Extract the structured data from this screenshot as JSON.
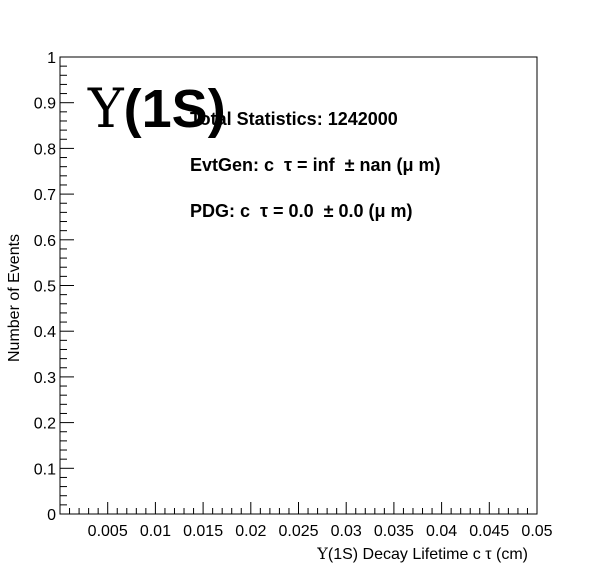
{
  "chart_data": {
    "type": "histogram",
    "title": "",
    "xlabel_prefix": "Υ",
    "xlabel": "(1S) Decay Lifetime c   τ (cm)",
    "ylabel": "Number of Events",
    "xlim": [
      0,
      0.05
    ],
    "ylim": [
      0,
      1
    ],
    "x_ticks": [
      "0.005",
      "0.01",
      "0.015",
      "0.02",
      "0.025",
      "0.03",
      "0.035",
      "0.04",
      "0.045",
      "0.05"
    ],
    "x_tick_values": [
      0.005,
      0.01,
      0.015,
      0.02,
      0.025,
      0.03,
      0.035,
      0.04,
      0.045,
      0.05
    ],
    "y_ticks": [
      "0",
      "0.1",
      "0.2",
      "0.3",
      "0.4",
      "0.5",
      "0.6",
      "0.7",
      "0.8",
      "0.9",
      "1"
    ],
    "y_tick_values": [
      0,
      0.1,
      0.2,
      0.3,
      0.4,
      0.5,
      0.6,
      0.7,
      0.8,
      0.9,
      1
    ],
    "series": [],
    "grid": false,
    "annotations": {
      "particle_symbol": "Υ",
      "particle_label": "(1S)",
      "total_statistics": "Total Statistics: 1242000",
      "evtgen": "EvtGen: c  τ = inf  ± nan (μ m)",
      "pdg": "PDG: c  τ = 0.0  ± 0.0 (μ m)"
    }
  }
}
